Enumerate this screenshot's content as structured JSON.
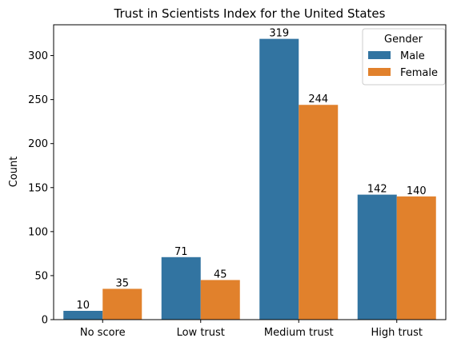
{
  "chart_data": {
    "type": "bar",
    "title": "Trust in Scientists Index for the United States",
    "xlabel": "",
    "ylabel": "Count",
    "categories": [
      "No score",
      "Low trust",
      "Medium trust",
      "High trust"
    ],
    "series": [
      {
        "name": "Male",
        "values": [
          10,
          71,
          319,
          142
        ],
        "color": "#3274a1"
      },
      {
        "name": "Female",
        "values": [
          35,
          45,
          244,
          140
        ],
        "color": "#e1812c"
      }
    ],
    "ylim": [
      0,
      335
    ],
    "yticks": [
      0,
      50,
      100,
      150,
      200,
      250,
      300
    ],
    "legend": {
      "title": "Gender",
      "placement": "top-right"
    },
    "grid": false,
    "data_labels": true
  }
}
